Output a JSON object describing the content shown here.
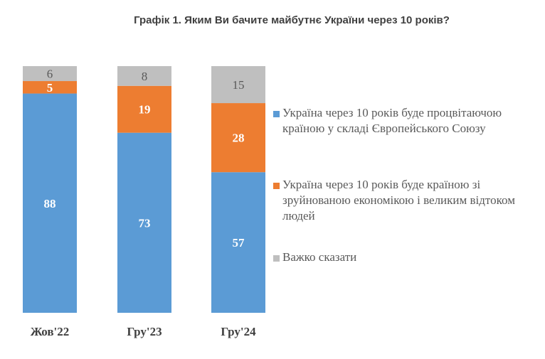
{
  "chart_data": {
    "type": "bar",
    "stacked": true,
    "title": "Графік 1. Яким Ви бачите майбутнє України через 10 років?",
    "categories": [
      "Жов'22",
      "Гру'23",
      "Гру'24"
    ],
    "series": [
      {
        "name": "Україна через 10 років буде процвітаючою країною у складі Європейського Союзу",
        "color": "#5b9bd5",
        "values": [
          88,
          73,
          57
        ]
      },
      {
        "name": "Україна через 10 років буде країною зі зруйнованою економікою і великим відтоком людей",
        "color": "#ed7d31",
        "values": [
          5,
          19,
          28
        ]
      },
      {
        "name": "Важко сказати",
        "color": "#bfbfbf",
        "values": [
          6,
          8,
          15
        ]
      }
    ],
    "legend_position": "right",
    "grid": false,
    "axes_visible": false
  }
}
